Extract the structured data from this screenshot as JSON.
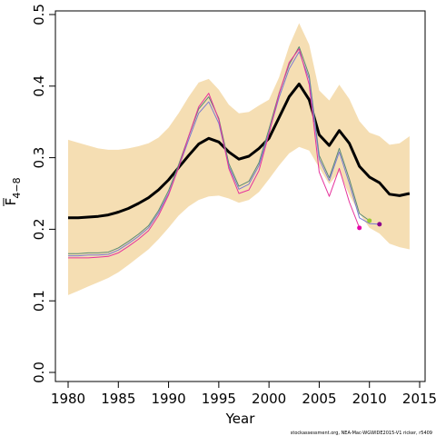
{
  "chart_data": {
    "type": "line",
    "xlabel": "Year",
    "ylabel": "F",
    "ylabel_subscript": "4−8",
    "credit": "stockassessment.org, NEA-Mac-WGWIDE2015-V1 ricker, r5409",
    "xlim": [
      1980,
      2015
    ],
    "ylim": [
      0,
      0.5
    ],
    "x_ticks": [
      1980,
      1985,
      1990,
      1995,
      2000,
      2005,
      2010,
      2015
    ],
    "y_ticks": [
      0.0,
      0.1,
      0.2,
      0.3,
      0.4,
      0.5
    ],
    "y_tick_labels": [
      "0.0",
      "0.1",
      "0.2",
      "0.3",
      "0.4",
      "0.5"
    ],
    "grid": false,
    "legend": "none",
    "band": {
      "color": "#f5deb3",
      "x": [
        1980,
        1981,
        1982,
        1983,
        1984,
        1985,
        1986,
        1987,
        1988,
        1989,
        1990,
        1991,
        1992,
        1993,
        1994,
        1995,
        1996,
        1997,
        1998,
        1999,
        2000,
        2001,
        2002,
        2003,
        2004,
        2005,
        2006,
        2007,
        2008,
        2009,
        2010,
        2011,
        2012,
        2013,
        2014
      ],
      "upper": [
        0.325,
        0.321,
        0.317,
        0.313,
        0.311,
        0.311,
        0.313,
        0.316,
        0.32,
        0.328,
        0.342,
        0.362,
        0.385,
        0.405,
        0.41,
        0.395,
        0.374,
        0.362,
        0.364,
        0.373,
        0.381,
        0.412,
        0.456,
        0.488,
        0.458,
        0.394,
        0.38,
        0.402,
        0.382,
        0.351,
        0.335,
        0.33,
        0.318,
        0.32,
        0.33
      ],
      "lower": [
        0.108,
        0.114,
        0.12,
        0.126,
        0.132,
        0.14,
        0.15,
        0.161,
        0.172,
        0.186,
        0.202,
        0.219,
        0.232,
        0.241,
        0.246,
        0.247,
        0.243,
        0.237,
        0.241,
        0.252,
        0.27,
        0.289,
        0.306,
        0.315,
        0.31,
        0.286,
        0.263,
        0.28,
        0.248,
        0.222,
        0.202,
        0.194,
        0.18,
        0.175,
        0.172
      ]
    },
    "series": [
      {
        "color": "#000000",
        "x": [
          1980,
          1981,
          1982,
          1983,
          1984,
          1985,
          1986,
          1987,
          1988,
          1989,
          1990,
          1991,
          1992,
          1993,
          1994,
          1995,
          1996,
          1997,
          1998,
          1999,
          2000,
          2001,
          2002,
          2003,
          2004,
          2005,
          2006,
          2007,
          2008,
          2009,
          2010,
          2011,
          2012,
          2013,
          2014
        ],
        "values": [
          0.216,
          0.216,
          0.217,
          0.218,
          0.22,
          0.224,
          0.229,
          0.236,
          0.244,
          0.255,
          0.269,
          0.286,
          0.303,
          0.319,
          0.327,
          0.322,
          0.308,
          0.298,
          0.302,
          0.313,
          0.327,
          0.356,
          0.385,
          0.403,
          0.381,
          0.332,
          0.317,
          0.338,
          0.32,
          0.288,
          0.273,
          0.265,
          0.249,
          0.247,
          0.25
        ]
      },
      {
        "color": "#5a8a74",
        "x": [
          1980,
          1981,
          1982,
          1983,
          1984,
          1985,
          1986,
          1987,
          1988,
          1989,
          1990,
          1991,
          1992,
          1993,
          1994,
          1995,
          1996,
          1997,
          1998,
          1999,
          2000,
          2001,
          2002,
          2003,
          2004,
          2005,
          2006,
          2007,
          2008,
          2009,
          2010
        ],
        "values": [
          0.166,
          0.166,
          0.167,
          0.167,
          0.168,
          0.174,
          0.183,
          0.193,
          0.205,
          0.226,
          0.254,
          0.29,
          0.33,
          0.368,
          0.385,
          0.355,
          0.292,
          0.26,
          0.267,
          0.293,
          0.34,
          0.39,
          0.43,
          0.455,
          0.415,
          0.303,
          0.272,
          0.313,
          0.27,
          0.222,
          0.212
        ]
      },
      {
        "color": "#7a7ad0",
        "x": [
          1980,
          1981,
          1982,
          1983,
          1984,
          1985,
          1986,
          1987,
          1988,
          1989,
          1990,
          1991,
          1992,
          1993,
          1994,
          1995,
          1996,
          1997,
          1998,
          1999,
          2000,
          2001,
          2002,
          2003,
          2004,
          2005,
          2006,
          2007,
          2008,
          2009,
          2010,
          2011
        ],
        "values": [
          0.163,
          0.163,
          0.164,
          0.164,
          0.165,
          0.171,
          0.18,
          0.19,
          0.202,
          0.223,
          0.25,
          0.286,
          0.325,
          0.362,
          0.378,
          0.348,
          0.288,
          0.256,
          0.263,
          0.289,
          0.335,
          0.384,
          0.424,
          0.448,
          0.41,
          0.298,
          0.268,
          0.308,
          0.264,
          0.216,
          0.208,
          0.207
        ]
      },
      {
        "color": "#e6339c",
        "x": [
          1980,
          1981,
          1982,
          1983,
          1984,
          1985,
          1986,
          1987,
          1988,
          1989,
          1990,
          1991,
          1992,
          1993,
          1994,
          1995,
          1996,
          1997,
          1998,
          1999,
          2000,
          2001,
          2002,
          2003,
          2004,
          2005,
          2006,
          2007,
          2008,
          2009
        ],
        "values": [
          0.16,
          0.16,
          0.16,
          0.161,
          0.162,
          0.167,
          0.176,
          0.186,
          0.198,
          0.219,
          0.248,
          0.286,
          0.33,
          0.371,
          0.39,
          0.353,
          0.285,
          0.25,
          0.255,
          0.282,
          0.333,
          0.389,
          0.433,
          0.452,
          0.402,
          0.28,
          0.246,
          0.285,
          0.238,
          0.202
        ]
      },
      {
        "color": "#9acd32",
        "x": [
          2010
        ],
        "values": [
          0.212
        ],
        "marker_only": true
      },
      {
        "color": "#8b008b",
        "x": [
          2011
        ],
        "values": [
          0.207
        ],
        "marker_only": true
      },
      {
        "color": "#e600a8",
        "x": [
          2009
        ],
        "values": [
          0.202
        ],
        "marker_only": true
      }
    ]
  }
}
